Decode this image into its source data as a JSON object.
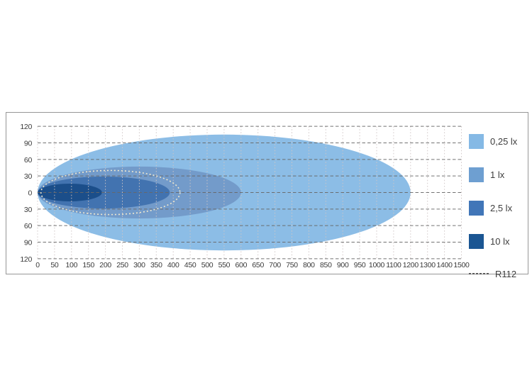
{
  "colors": {
    "grid_horizontal": "#676767",
    "grid_vertical": "#cfc5c5",
    "box_border": "#979797",
    "tick_text": "#3a3a3a"
  },
  "legend": {
    "items": [
      {
        "label": "0,25 lx",
        "color": "#85B9E5"
      },
      {
        "label": "1 lx",
        "color": "#6E9FD1"
      },
      {
        "label": "2,5 lx",
        "color": "#4176B8"
      },
      {
        "label": "10 lx",
        "color": "#1B5693"
      }
    ],
    "r112_label": "R112"
  },
  "chart_data": {
    "type": "area",
    "title": "",
    "xlabel": "",
    "ylabel": "",
    "grid": true,
    "legend_position": "right",
    "x_ticks": {
      "labels": [
        "0",
        "50",
        "100",
        "150",
        "200",
        "250",
        "300",
        "350",
        "400",
        "450",
        "500",
        "550",
        "600",
        "650",
        "700",
        "750",
        "800",
        "850",
        "900",
        "950",
        "1000",
        "1100",
        "1200",
        "1300",
        "1400",
        "1500"
      ],
      "linear_until": 1000,
      "step_near": 50,
      "step_far": 100
    },
    "y_ticks": {
      "labels": [
        "120",
        "90",
        "60",
        "30",
        "0",
        "30",
        "60",
        "90",
        "120"
      ],
      "values": [
        120,
        90,
        60,
        30,
        0,
        -30,
        -60,
        -90,
        -120
      ]
    },
    "series": [
      {
        "name": "0,25 lx",
        "x_min": 0,
        "x_max": 1200,
        "y_half_width": 105,
        "color": "#8CBDE6",
        "style": "filled"
      },
      {
        "name": "1 lx",
        "x_min": 0,
        "x_max": 600,
        "y_half_width": 47,
        "color": "#7097C7",
        "style": "filled"
      },
      {
        "name": "2,5 lx",
        "x_min": 0,
        "x_max": 390,
        "y_half_width": 29,
        "color": "#3E70AE",
        "style": "filled"
      },
      {
        "name": "10 lx",
        "x_min": 0,
        "x_max": 190,
        "y_half_width": 16,
        "color": "#1B4E8A",
        "style": "filled"
      },
      {
        "name": "R112",
        "x_min": 10,
        "x_max": 420,
        "y_half_width": 40,
        "color": "#EFE8CF",
        "style": "dotted"
      }
    ]
  }
}
